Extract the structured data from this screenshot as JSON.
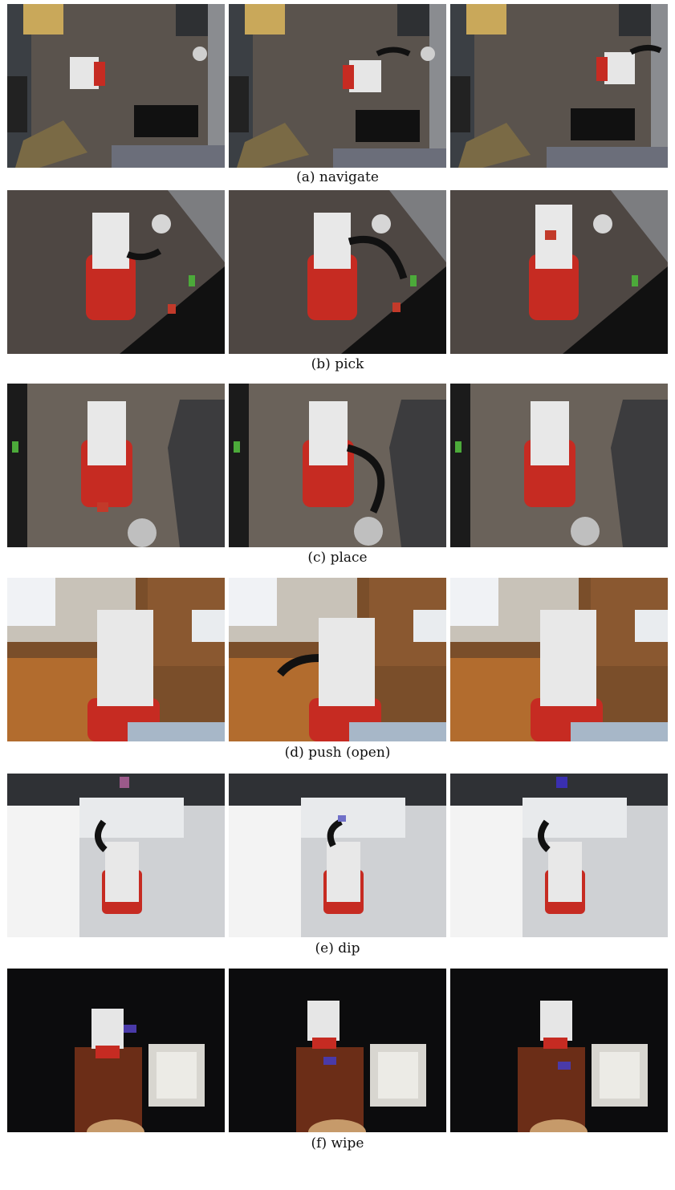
{
  "figure": {
    "rows": [
      {
        "id": "navigate",
        "label": "(a) navigate",
        "scene": "office-topdown"
      },
      {
        "id": "pick",
        "label": "(b) pick",
        "scene": "office-closeup"
      },
      {
        "id": "place",
        "label": "(c) place",
        "scene": "office-bin"
      },
      {
        "id": "push",
        "label": "(d) push (open)",
        "scene": "bedroom-drawer"
      },
      {
        "id": "dip",
        "label": "(e) dip",
        "scene": "bathroom-sink"
      },
      {
        "id": "wipe",
        "label": "(f) wipe",
        "scene": "dark-table"
      }
    ]
  }
}
